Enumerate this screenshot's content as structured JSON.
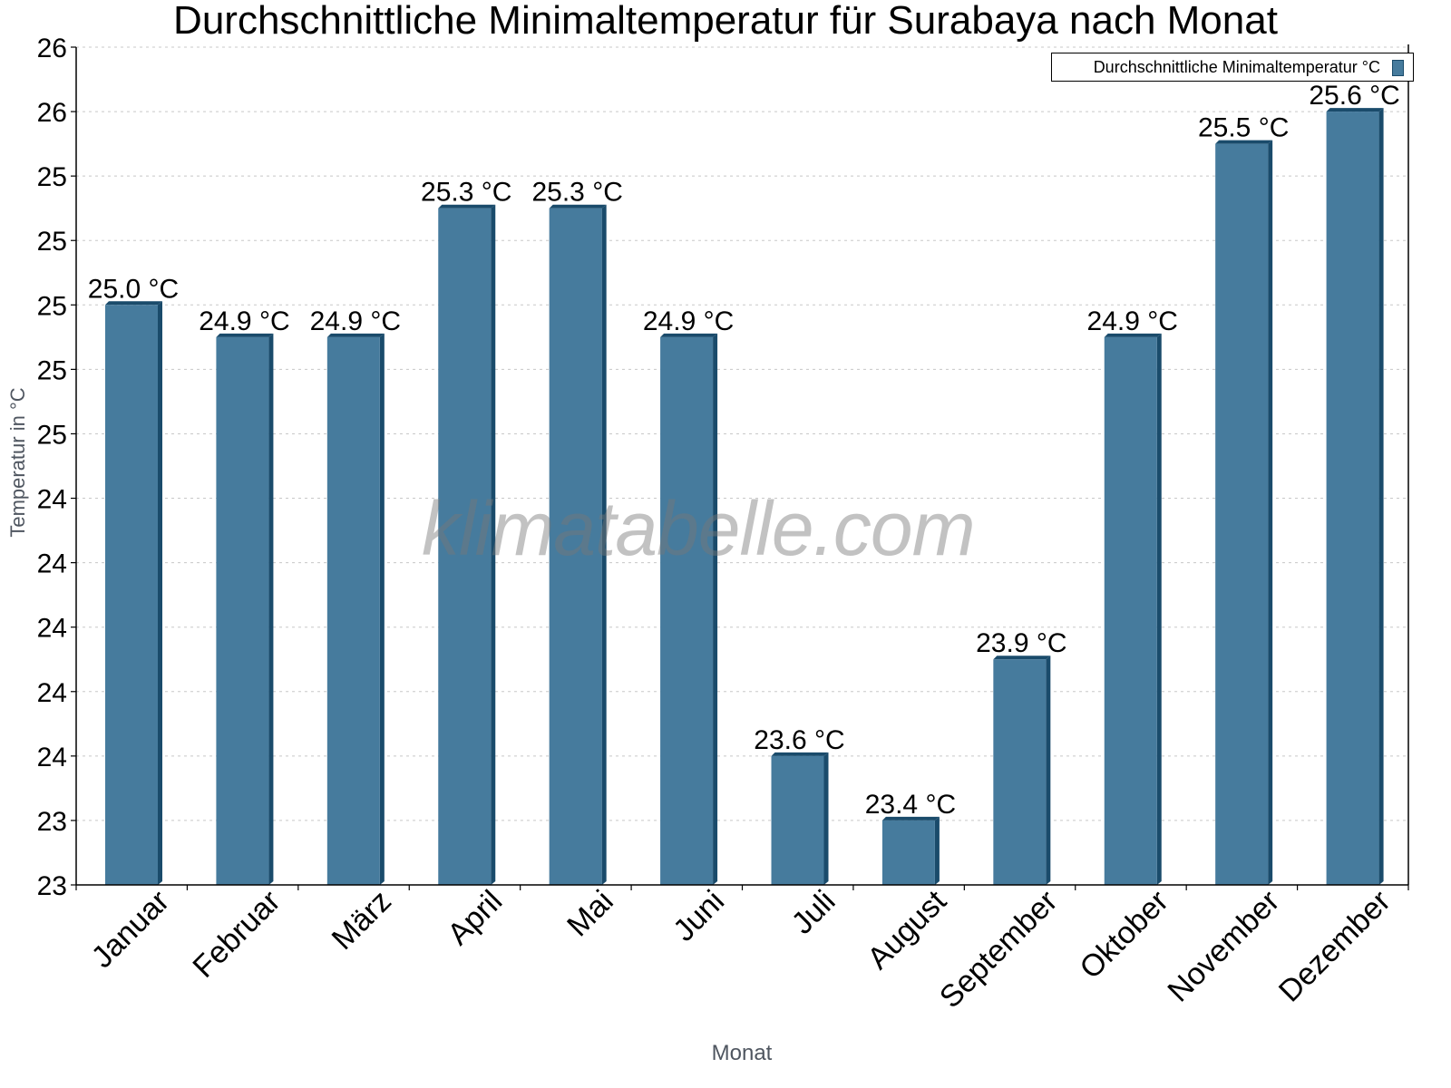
{
  "title": "Durchschnittliche Minimaltemperatur für Surabaya nach Monat",
  "watermark": "klimatabelle.com",
  "legend": {
    "label": "Durchschnittliche Minimaltemperatur °C",
    "color": "#467b9d"
  },
  "colors": {
    "bar_face": "#467b9d",
    "bar_side": "#1a4b6b",
    "grid": "#c8c8c8",
    "axis": "#000000"
  },
  "chart_data": {
    "type": "bar",
    "title": "Durchschnittliche Minimaltemperatur für Surabaya nach Monat",
    "xlabel": "Monat",
    "ylabel": "Temperatur in °C",
    "categories": [
      "Januar",
      "Februar",
      "März",
      "April",
      "Mai",
      "Juni",
      "Juli",
      "August",
      "September",
      "Oktober",
      "November",
      "Dezember"
    ],
    "series": [
      {
        "name": "Durchschnittliche Minimaltemperatur °C",
        "values": [
          25.0,
          24.9,
          24.9,
          25.3,
          25.3,
          24.9,
          23.6,
          23.4,
          23.9,
          24.9,
          25.5,
          25.6
        ]
      }
    ],
    "data_labels": [
      "25.0 °C",
      "24.9 °C",
      "24.9 °C",
      "25.3 °C",
      "25.3 °C",
      "24.9 °C",
      "23.6 °C",
      "23.4 °C",
      "23.9 °C",
      "24.9 °C",
      "25.5 °C",
      "25.6 °C"
    ],
    "ylim": [
      23.2,
      25.8
    ],
    "y_ticks": [
      25.8,
      25.6,
      25.4,
      25.2,
      25.0,
      24.8,
      24.6,
      24.4,
      24.2,
      24.0,
      23.8,
      23.6,
      23.4,
      23.2
    ],
    "y_tick_labels": [
      "26",
      "26",
      "25",
      "25",
      "25",
      "25",
      "25",
      "24",
      "24",
      "24",
      "24",
      "24",
      "23",
      "23"
    ],
    "grid": true,
    "legend_position": "top-right"
  }
}
